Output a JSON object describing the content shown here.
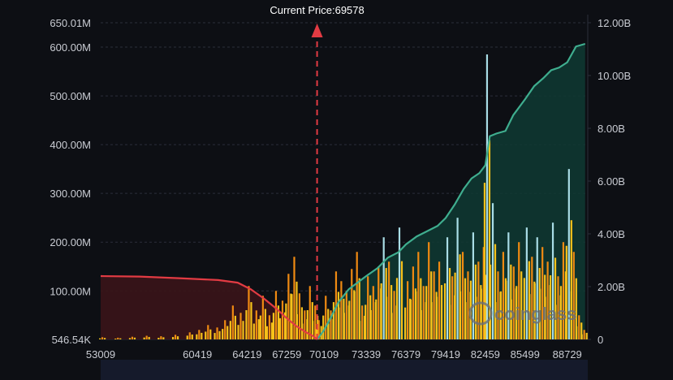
{
  "colors": {
    "background": "#0d0f14",
    "grid": "#2b2f3a",
    "label": "#c9ccd3",
    "short_line": "#e23b43",
    "short_fill": "#3a1418",
    "long_line": "#3fae8f",
    "long_fill": "#0f3a33",
    "bar_small": "#f7c21a",
    "bar_mid": "#f08a12",
    "bar_tall": "#a9dde6",
    "current_price_marker": "#e23b43",
    "watermark": "#6b6f78"
  },
  "watermark": "coinglass",
  "chart_data": {
    "type": "bar",
    "title": "",
    "annotation": {
      "label": "Current Price:69578",
      "price": 69578,
      "style": "dashed vertical arrow"
    },
    "x_tick_labels": [
      "53009",
      "60419",
      "64219",
      "67259",
      "70109",
      "73339",
      "76379",
      "79419",
      "82459",
      "85499",
      "88729"
    ],
    "x_range": [
      53009,
      90300
    ],
    "y_left": {
      "tick_labels": [
        "546.54K",
        "100.00M",
        "200.00M",
        "300.00M",
        "400.00M",
        "500.00M",
        "600.00M",
        "650.01M"
      ],
      "range": [
        546540,
        650010000
      ]
    },
    "y_right": {
      "tick_labels": [
        "0",
        "2.00B",
        "4.00B",
        "6.00B",
        "8.00B",
        "10.00B",
        "12.00B"
      ],
      "range": [
        0,
        12000000000
      ]
    },
    "grid": "horizontal dashed",
    "bars_series": {
      "name": "",
      "axis": "left",
      "x": [
        53009,
        54200,
        55300,
        56400,
        57500,
        58600,
        59700,
        60419,
        61100,
        61800,
        62400,
        63000,
        63600,
        64219,
        64800,
        65300,
        65800,
        66300,
        66800,
        67259,
        67700,
        68100,
        68500,
        68900,
        69300,
        69578,
        70109,
        70500,
        70900,
        71300,
        71700,
        72100,
        72500,
        72900,
        73339,
        73750,
        74150,
        74550,
        74950,
        75350,
        75750,
        76379,
        76800,
        77200,
        77600,
        78000,
        78400,
        78800,
        79419,
        79800,
        80200,
        80600,
        81000,
        81400,
        81800,
        82200,
        82459,
        82900,
        83300,
        83700,
        84100,
        84500,
        84900,
        85499,
        85900,
        86300,
        86700,
        87100,
        87500,
        87900,
        88300,
        88729,
        89100,
        89500,
        89900
      ],
      "values": [
        5000000,
        4000000,
        6000000,
        8000000,
        7000000,
        10000000,
        15000000,
        20000000,
        30000000,
        25000000,
        40000000,
        70000000,
        55000000,
        110000000,
        60000000,
        90000000,
        50000000,
        100000000,
        80000000,
        135000000,
        170000000,
        95000000,
        60000000,
        110000000,
        70000000,
        40000000,
        90000000,
        60000000,
        140000000,
        120000000,
        100000000,
        145000000,
        180000000,
        70000000,
        130000000,
        110000000,
        150000000,
        210000000,
        160000000,
        100000000,
        230000000,
        120000000,
        150000000,
        180000000,
        110000000,
        200000000,
        140000000,
        160000000,
        210000000,
        130000000,
        250000000,
        180000000,
        140000000,
        220000000,
        160000000,
        190000000,
        585000000,
        280000000,
        140000000,
        180000000,
        220000000,
        150000000,
        200000000,
        230000000,
        170000000,
        210000000,
        190000000,
        160000000,
        240000000,
        130000000,
        200000000,
        350000000,
        180000000,
        50000000,
        20000000
      ]
    },
    "short_cumulative": {
      "name": "",
      "axis": "right",
      "x": [
        53009,
        56000,
        59000,
        62000,
        63500,
        64500,
        65500,
        66500,
        67259,
        68000,
        68700,
        69300,
        69578
      ],
      "values": [
        2400000000,
        2380000000,
        2320000000,
        2250000000,
        2150000000,
        1900000000,
        1550000000,
        1150000000,
        800000000,
        500000000,
        280000000,
        120000000,
        0
      ]
    },
    "long_cumulative": {
      "name": "",
      "axis": "right",
      "x": [
        69578,
        70109,
        70600,
        71200,
        72000,
        72800,
        73339,
        74200,
        75000,
        75800,
        76379,
        77200,
        78000,
        78800,
        79419,
        80100,
        80800,
        81400,
        82000,
        82459,
        82800,
        83300,
        84000,
        84600,
        85200,
        85499,
        86200,
        86900,
        87500,
        88100,
        88729,
        89400,
        90100
      ],
      "values": [
        0,
        350000000,
        800000000,
        1400000000,
        1900000000,
        2200000000,
        2400000000,
        2700000000,
        3100000000,
        3300000000,
        3600000000,
        3900000000,
        4100000000,
        4300000000,
        4600000000,
        5100000000,
        5700000000,
        6100000000,
        6300000000,
        6600000000,
        7700000000,
        7800000000,
        7900000000,
        8500000000,
        8900000000,
        9100000000,
        9600000000,
        9900000000,
        10200000000,
        10300000000,
        10500000000,
        11100000000,
        11200000000
      ]
    }
  }
}
